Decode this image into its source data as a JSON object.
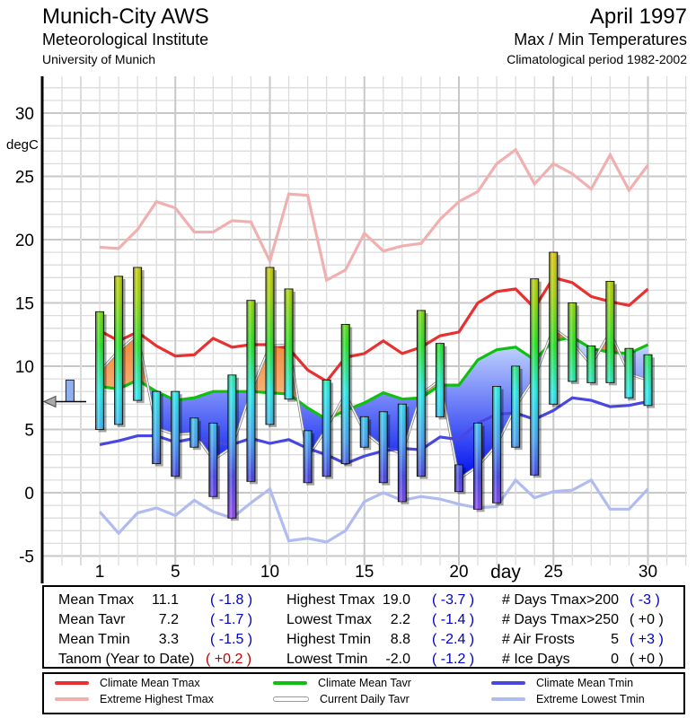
{
  "header": {
    "station": "Munich-City AWS",
    "institute": "Meteorological Institute",
    "university": "University of Munich",
    "month": "April 1997",
    "subtitle": "Max / Min Temperatures",
    "period": "Climatological period 1982-2002"
  },
  "chart_data": {
    "type": "bar",
    "title": "Max / Min Temperatures April 1997",
    "xlabel": "day",
    "ylabel": "degC",
    "ylim": [
      -5,
      30
    ],
    "xlim": [
      0,
      31
    ],
    "yticks": [
      -5,
      0,
      5,
      10,
      15,
      20,
      25,
      30
    ],
    "xticks": [
      1,
      5,
      10,
      15,
      20,
      25,
      30
    ],
    "grid": true,
    "days": [
      1,
      2,
      3,
      4,
      5,
      6,
      7,
      8,
      9,
      10,
      11,
      12,
      13,
      14,
      15,
      16,
      17,
      18,
      19,
      20,
      21,
      22,
      23,
      24,
      25,
      26,
      27,
      28,
      29,
      30
    ],
    "daily_tmax": [
      14.3,
      17.1,
      17.8,
      8.0,
      8.0,
      5.9,
      5.5,
      9.3,
      15.2,
      17.8,
      16.1,
      4.9,
      8.9,
      13.3,
      6.0,
      6.4,
      7.0,
      14.4,
      11.8,
      2.2,
      5.5,
      8.4,
      10.0,
      16.9,
      19.0,
      15.0,
      11.6,
      16.7,
      11.4,
      10.9
    ],
    "daily_tmin": [
      5.0,
      5.4,
      7.3,
      2.3,
      1.3,
      3.6,
      -0.3,
      -2.0,
      0.9,
      5.4,
      7.4,
      0.8,
      1.3,
      2.3,
      3.6,
      0.8,
      -0.7,
      1.3,
      6.0,
      0.1,
      -1.3,
      -0.8,
      3.6,
      1.4,
      7.0,
      8.8,
      8.7,
      8.7,
      7.5,
      6.9
    ],
    "series": [
      {
        "name": "Climate Mean Tmax",
        "color": "#e83030",
        "values": [
          12.8,
          12.0,
          12.7,
          11.6,
          10.8,
          10.9,
          12.2,
          11.5,
          11.7,
          11.7,
          11.4,
          9.7,
          8.8,
          10.7,
          11.0,
          12.0,
          11.0,
          11.5,
          12.4,
          12.7,
          15.0,
          15.9,
          16.1,
          14.6,
          17.0,
          16.6,
          15.5,
          15.1,
          14.8,
          16.1
        ]
      },
      {
        "name": "Extreme Highest Tmax",
        "color": "#f0b0b0",
        "values": [
          19.4,
          19.3,
          20.8,
          23.0,
          22.5,
          20.6,
          20.6,
          21.5,
          21.4,
          18.3,
          23.6,
          23.5,
          16.8,
          17.6,
          20.5,
          19.1,
          19.5,
          19.7,
          21.6,
          23.0,
          23.8,
          26.0,
          27.1,
          24.4,
          26.0,
          25.2,
          24.0,
          26.7,
          23.9,
          25.9
        ]
      },
      {
        "name": "Climate Mean Tavr",
        "color": "#10c010",
        "values": [
          8.4,
          8.2,
          8.9,
          8.0,
          7.3,
          7.5,
          8.0,
          8.0,
          8.0,
          7.9,
          7.8,
          6.7,
          5.8,
          6.5,
          7.1,
          7.9,
          7.4,
          7.5,
          8.5,
          8.5,
          10.5,
          11.3,
          11.5,
          10.5,
          12.0,
          12.3,
          11.4,
          11.1,
          11.0,
          11.7
        ]
      },
      {
        "name": "Current Daily Tavr",
        "color": "#a8a8a8",
        "values": [
          9.6,
          11.2,
          12.5,
          5.1,
          4.6,
          4.7,
          2.6,
          3.6,
          8.0,
          11.6,
          11.7,
          2.8,
          5.1,
          7.8,
          4.8,
          3.6,
          3.1,
          7.8,
          8.9,
          1.1,
          2.1,
          3.8,
          6.8,
          9.1,
          13.0,
          11.9,
          10.1,
          12.7,
          9.4,
          8.9
        ]
      },
      {
        "name": "Climate Mean Tmin",
        "color": "#4848e0",
        "values": [
          3.8,
          4.1,
          4.5,
          4.5,
          4.0,
          4.3,
          4.0,
          3.8,
          4.3,
          3.9,
          4.2,
          3.5,
          3.0,
          2.3,
          2.9,
          3.3,
          3.5,
          3.4,
          4.4,
          4.2,
          5.5,
          6.2,
          6.3,
          5.8,
          6.5,
          7.5,
          7.3,
          6.8,
          6.9,
          7.2
        ]
      },
      {
        "name": "Extreme Lowest Tmin",
        "color": "#b0bcf0",
        "values": [
          -1.5,
          -3.2,
          -1.6,
          -1.2,
          -1.8,
          -0.6,
          -1.5,
          -2.0,
          -0.8,
          0.3,
          -3.8,
          -3.6,
          -3.9,
          -3.0,
          -0.7,
          0.0,
          -0.6,
          -0.3,
          -0.5,
          -0.9,
          -1.2,
          -1.1,
          1.0,
          -0.4,
          0.1,
          0.2,
          1.0,
          -1.3,
          -1.3,
          0.3
        ]
      }
    ],
    "year_to_date": {
      "tmax": 8.9,
      "tavr": 7.2
    }
  },
  "stats": {
    "col1": [
      {
        "label": "Mean Tmax",
        "value": "11.1",
        "anom": "( -1.8 )",
        "tone": "blue"
      },
      {
        "label": "Mean Tavr",
        "value": "7.2",
        "anom": "( -1.7 )",
        "tone": "blue"
      },
      {
        "label": "Mean Tmin",
        "value": "3.3",
        "anom": "( -1.5 )",
        "tone": "blue"
      },
      {
        "label": "Tanom (Year to Date)",
        "value": "",
        "anom": "( +0.2 )",
        "tone": "red"
      }
    ],
    "col2": [
      {
        "label": "Highest Tmax",
        "value": "19.0",
        "anom": "( -3.7 )",
        "tone": "blue"
      },
      {
        "label": "Lowest Tmax",
        "value": "2.2",
        "anom": "( -1.4 )",
        "tone": "blue"
      },
      {
        "label": "Highest Tmin",
        "value": "8.8",
        "anom": "( -2.4 )",
        "tone": "blue"
      },
      {
        "label": "Lowest Tmin",
        "value": "-2.0",
        "anom": "( -1.2 )",
        "tone": "blue"
      }
    ],
    "col3": [
      {
        "label": "# Days Tmax>20",
        "value": "0",
        "anom": "( -3 )",
        "tone": "blue"
      },
      {
        "label": "# Days Tmax>25",
        "value": "0",
        "anom": "( +0 )",
        "tone": "black"
      },
      {
        "label": "# Air Frosts",
        "value": "5",
        "anom": "( +3 )",
        "tone": "blue"
      },
      {
        "label": "# Ice Days",
        "value": "0",
        "anom": "( +0 )",
        "tone": "black"
      }
    ]
  }
}
